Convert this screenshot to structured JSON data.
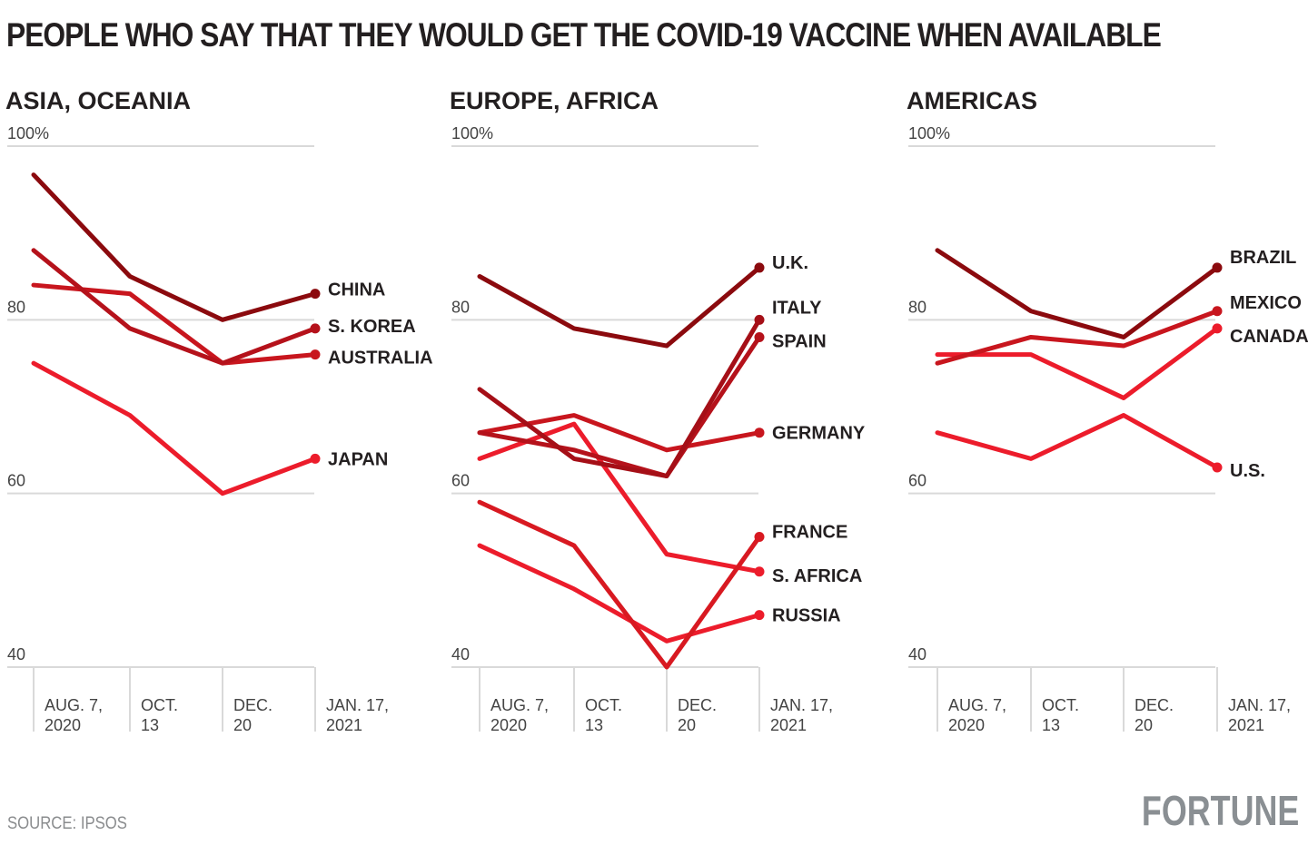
{
  "title": "PEOPLE WHO SAY THAT THEY WOULD GET THE COVID-19 VACCINE WHEN AVAILABLE",
  "source": "SOURCE: IPSOS",
  "brand": "FORTUNE",
  "chart_data": [
    {
      "type": "line",
      "title": "ASIA, OCEANIA",
      "ylim": [
        40,
        100
      ],
      "yticks": [
        "100%",
        "80",
        "60",
        "40"
      ],
      "categories": [
        [
          "AUG. 7,",
          "2020"
        ],
        [
          "OCT.",
          "13"
        ],
        [
          "DEC.",
          "20"
        ],
        [
          "JAN. 17,",
          "2021"
        ]
      ],
      "series": [
        {
          "name": "CHINA",
          "color": "#8b0a0e",
          "values": [
            96.7,
            85,
            80,
            83
          ]
        },
        {
          "name": "S. KOREA",
          "color": "#b5121b",
          "values": [
            88,
            79,
            75,
            79
          ]
        },
        {
          "name": "AUSTRALIA",
          "color": "#c8161e",
          "values": [
            84,
            83,
            75,
            76
          ]
        },
        {
          "name": "JAPAN",
          "color": "#ec1c2b",
          "values": [
            75,
            69,
            60,
            64
          ]
        }
      ]
    },
    {
      "type": "line",
      "title": "EUROPE, AFRICA",
      "ylim": [
        40,
        100
      ],
      "yticks": [
        "100%",
        "80",
        "60",
        "40"
      ],
      "categories": [
        [
          "AUG. 7,",
          "2020"
        ],
        [
          "OCT.",
          "13"
        ],
        [
          "DEC.",
          "20"
        ],
        [
          "JAN. 17,",
          "2021"
        ]
      ],
      "series": [
        {
          "name": "U.K.",
          "color": "#8b0a0e",
          "values": [
            85,
            79,
            77,
            86
          ]
        },
        {
          "name": "ITALY",
          "color": "#a50f17",
          "values": [
            72,
            64,
            62,
            80
          ]
        },
        {
          "name": "SPAIN",
          "color": "#b5121b",
          "values": [
            67,
            65,
            62,
            78
          ]
        },
        {
          "name": "GERMANY",
          "color": "#c8161e",
          "values": [
            67,
            69,
            65,
            67
          ]
        },
        {
          "name": "FRANCE",
          "color": "#d81921",
          "values": [
            59,
            54,
            40,
            55
          ]
        },
        {
          "name": "S. AFRICA",
          "color": "#ec1c2b",
          "values": [
            64,
            68,
            53,
            51
          ]
        },
        {
          "name": "RUSSIA",
          "color": "#ec1c2b",
          "values": [
            54,
            49,
            43,
            46
          ]
        }
      ]
    },
    {
      "type": "line",
      "title": "AMERICAS",
      "ylim": [
        40,
        100
      ],
      "yticks": [
        "100%",
        "80",
        "60",
        "40"
      ],
      "categories": [
        [
          "AUG. 7,",
          "2020"
        ],
        [
          "OCT.",
          "13"
        ],
        [
          "DEC.",
          "20"
        ],
        [
          "JAN. 17,",
          "2021"
        ]
      ],
      "series": [
        {
          "name": "BRAZIL",
          "color": "#8b0a0e",
          "values": [
            88,
            81,
            78,
            86
          ]
        },
        {
          "name": "MEXICO",
          "color": "#c8161e",
          "values": [
            75,
            78,
            77,
            81
          ]
        },
        {
          "name": "CANADA",
          "color": "#ec1c2b",
          "values": [
            76,
            76,
            71,
            79
          ]
        },
        {
          "name": "U.S.",
          "color": "#ec1c2b",
          "values": [
            67,
            64,
            69,
            63
          ]
        }
      ]
    }
  ]
}
